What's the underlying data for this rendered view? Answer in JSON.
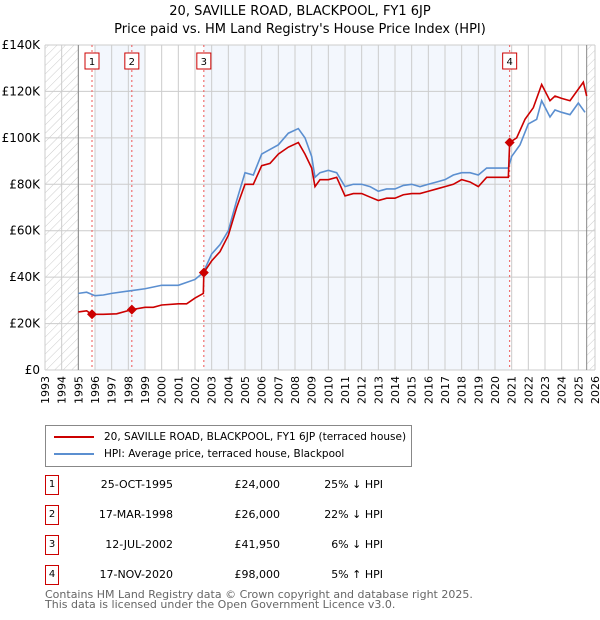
{
  "chart_data": {
    "type": "line",
    "title": "20, SAVILLE ROAD, BLACKPOOL, FY1 6JP",
    "subtitle": "Price paid vs. HM Land Registry's House Price Index (HPI)",
    "xlim": [
      1993,
      2026
    ],
    "ylim": [
      0,
      140000
    ],
    "yticks": [
      {
        "v": 0,
        "label": "£0"
      },
      {
        "v": 20000,
        "label": "£20K"
      },
      {
        "v": 40000,
        "label": "£40K"
      },
      {
        "v": 60000,
        "label": "£60K"
      },
      {
        "v": 80000,
        "label": "£80K"
      },
      {
        "v": 100000,
        "label": "£100K"
      },
      {
        "v": 120000,
        "label": "£120K"
      },
      {
        "v": 140000,
        "label": "£140K"
      }
    ],
    "xticks": [
      "1993",
      "1994",
      "1995",
      "1996",
      "1997",
      "1998",
      "1999",
      "2000",
      "2001",
      "2002",
      "2003",
      "2004",
      "2005",
      "2006",
      "2007",
      "2008",
      "2009",
      "2010",
      "2011",
      "2012",
      "2013",
      "2014",
      "2015",
      "2016",
      "2017",
      "2018",
      "2019",
      "2020",
      "2021",
      "2022",
      "2023",
      "2024",
      "2025",
      "2026"
    ],
    "series": [
      {
        "name": "20, SAVILLE ROAD, BLACKPOOL, FY1 6JP (terraced house)",
        "color": "#cc0000",
        "points": [
          [
            1995,
            25
          ],
          [
            1995.5,
            25.5
          ],
          [
            1995.8,
            24
          ],
          [
            1996.5,
            24
          ],
          [
            1997.3,
            24.2
          ],
          [
            1998.2,
            26
          ],
          [
            1999,
            27
          ],
          [
            1999.5,
            27
          ],
          [
            2000,
            28
          ],
          [
            2001,
            28.5
          ],
          [
            2001.5,
            28.5
          ],
          [
            2002,
            31
          ],
          [
            2002.5,
            33
          ],
          [
            2002.53,
            42
          ],
          [
            2003,
            47
          ],
          [
            2003.5,
            51
          ],
          [
            2004,
            58
          ],
          [
            2004.5,
            70
          ],
          [
            2005,
            80
          ],
          [
            2005.5,
            80
          ],
          [
            2006,
            88
          ],
          [
            2006.5,
            89
          ],
          [
            2007,
            93
          ],
          [
            2007.6,
            96
          ],
          [
            2008.2,
            98
          ],
          [
            2008.6,
            93
          ],
          [
            2009,
            87
          ],
          [
            2009.2,
            79
          ],
          [
            2009.5,
            82
          ],
          [
            2010,
            82
          ],
          [
            2010.5,
            83
          ],
          [
            2011,
            75
          ],
          [
            2011.5,
            76
          ],
          [
            2012,
            76
          ],
          [
            2012.5,
            74.5
          ],
          [
            2013,
            73
          ],
          [
            2013.5,
            74
          ],
          [
            2014,
            74
          ],
          [
            2014.5,
            75.5
          ],
          [
            2015,
            76
          ],
          [
            2015.5,
            76
          ],
          [
            2016,
            77
          ],
          [
            2016.5,
            78
          ],
          [
            2017,
            79
          ],
          [
            2017.5,
            80
          ],
          [
            2018,
            82
          ],
          [
            2018.5,
            81
          ],
          [
            2019,
            79
          ],
          [
            2019.5,
            83
          ],
          [
            2020,
            83
          ],
          [
            2020.8,
            83
          ],
          [
            2020.88,
            98
          ],
          [
            2021.3,
            100
          ],
          [
            2021.8,
            108
          ],
          [
            2022.3,
            113
          ],
          [
            2022.8,
            123
          ],
          [
            2023.3,
            116
          ],
          [
            2023.6,
            118
          ],
          [
            2024,
            117
          ],
          [
            2024.5,
            116
          ],
          [
            2025,
            121
          ],
          [
            2025.3,
            124
          ],
          [
            2025.5,
            118
          ]
        ]
      },
      {
        "name": "HPI: Average price, terraced house, Blackpool",
        "color": "#5b8fd0",
        "points": [
          [
            1995,
            33
          ],
          [
            1995.5,
            33.5
          ],
          [
            1996,
            32
          ],
          [
            1996.5,
            32.3
          ],
          [
            1997,
            33
          ],
          [
            1998,
            34
          ],
          [
            1999,
            35
          ],
          [
            2000,
            36.5
          ],
          [
            2000.5,
            36.5
          ],
          [
            2001,
            36.5
          ],
          [
            2002,
            39
          ],
          [
            2002.5,
            42
          ],
          [
            2003,
            50
          ],
          [
            2003.5,
            54
          ],
          [
            2004,
            60
          ],
          [
            2004.5,
            73
          ],
          [
            2005,
            85
          ],
          [
            2005.5,
            84
          ],
          [
            2006,
            93
          ],
          [
            2006.5,
            95
          ],
          [
            2007,
            97
          ],
          [
            2007.6,
            102
          ],
          [
            2008.2,
            104
          ],
          [
            2008.6,
            100
          ],
          [
            2009,
            92
          ],
          [
            2009.2,
            83
          ],
          [
            2009.5,
            85
          ],
          [
            2010,
            86
          ],
          [
            2010.5,
            85
          ],
          [
            2011,
            79
          ],
          [
            2011.5,
            80
          ],
          [
            2012,
            80
          ],
          [
            2012.5,
            79
          ],
          [
            2013,
            77
          ],
          [
            2013.5,
            78
          ],
          [
            2014,
            78
          ],
          [
            2014.5,
            79.5
          ],
          [
            2015,
            80
          ],
          [
            2015.5,
            79
          ],
          [
            2016,
            80
          ],
          [
            2016.5,
            81
          ],
          [
            2017,
            82
          ],
          [
            2017.5,
            84
          ],
          [
            2018,
            85
          ],
          [
            2018.5,
            85
          ],
          [
            2019,
            84
          ],
          [
            2019.5,
            87
          ],
          [
            2020,
            87
          ],
          [
            2020.8,
            87
          ],
          [
            2021,
            92
          ],
          [
            2021.5,
            97
          ],
          [
            2022,
            106
          ],
          [
            2022.5,
            108
          ],
          [
            2022.8,
            116
          ],
          [
            2023.3,
            109
          ],
          [
            2023.6,
            112
          ],
          [
            2024,
            111
          ],
          [
            2024.5,
            110
          ],
          [
            2025,
            115
          ],
          [
            2025.4,
            111
          ]
        ]
      }
    ],
    "sales": [
      {
        "n": "1",
        "year": 1995.82,
        "value": 24
      },
      {
        "n": "2",
        "year": 1998.21,
        "value": 26
      },
      {
        "n": "3",
        "year": 2002.53,
        "value": 41.95
      },
      {
        "n": "4",
        "year": 2020.88,
        "value": 98
      }
    ]
  },
  "legend": {
    "property": "20, SAVILLE ROAD, BLACKPOOL, FY1 6JP (terraced house)",
    "hpi": "HPI: Average price, terraced house, Blackpool"
  },
  "transactions": [
    {
      "n": "1",
      "date": "25-OCT-1995",
      "price": "£24,000",
      "hpi": "25% ↓ HPI"
    },
    {
      "n": "2",
      "date": "17-MAR-1998",
      "price": "£26,000",
      "hpi": "22% ↓ HPI"
    },
    {
      "n": "3",
      "date": "12-JUL-2002",
      "price": "£41,950",
      "hpi": "6% ↓ HPI"
    },
    {
      "n": "4",
      "date": "17-NOV-2020",
      "price": "£98,000",
      "hpi": "5% ↑ HPI"
    }
  ],
  "footer": {
    "line1": "Contains HM Land Registry data © Crown copyright and database right 2025.",
    "line2": "This data is licensed under the Open Government Licence v3.0."
  }
}
